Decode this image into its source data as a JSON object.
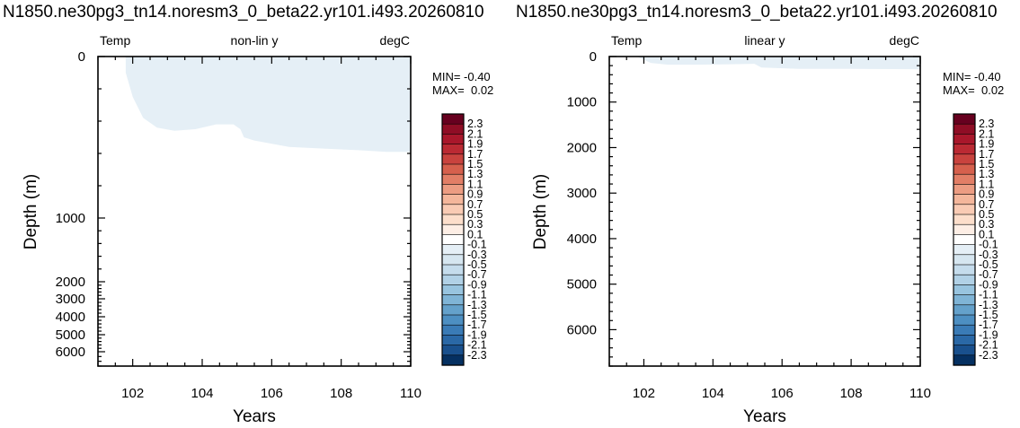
{
  "chart_data": [
    {
      "type": "heatmap",
      "title": "N1850.ne30pg3_tn14.noresm3_0_beta22.yr101.i493.20260810",
      "left_string": "Temp",
      "center_string": "non-lin y",
      "right_string": "degC",
      "xlabel": "Years",
      "ylabel": "Depth (m)",
      "xlim": [
        101,
        110
      ],
      "ylim": [
        6600,
        0
      ],
      "y_scale": "non-linear",
      "x_ticks": [
        102,
        104,
        106,
        108,
        110
      ],
      "y_ticks": [
        0,
        1000,
        2000,
        3000,
        4000,
        5000,
        6000
      ],
      "min_label": "MIN= -0.40",
      "max_label": "MAX=  0.02",
      "fill_color": "#e5eff6",
      "anomaly_region": {
        "value_range": [
          -0.1,
          0.1
        ],
        "start_year": 101.8,
        "boundary": [
          [
            101.8,
            0
          ],
          [
            101.8,
            100
          ],
          [
            102.0,
            250
          ],
          [
            102.3,
            380
          ],
          [
            102.7,
            440
          ],
          [
            103.2,
            460
          ],
          [
            103.8,
            450
          ],
          [
            104.4,
            420
          ],
          [
            104.9,
            420
          ],
          [
            105.1,
            450
          ],
          [
            105.2,
            500
          ],
          [
            105.5,
            520
          ],
          [
            106.5,
            560
          ],
          [
            107.5,
            570
          ],
          [
            108.5,
            580
          ],
          [
            109.3,
            590
          ],
          [
            110.0,
            590
          ]
        ]
      }
    },
    {
      "type": "heatmap",
      "title": "N1850.ne30pg3_tn14.noresm3_0_beta22.yr101.i493.20260810",
      "left_string": "Temp",
      "center_string": "linear y",
      "right_string": "degC",
      "xlabel": "Years",
      "ylabel": "Depth (m)",
      "xlim": [
        101,
        110
      ],
      "ylim": [
        6800,
        0
      ],
      "y_scale": "linear",
      "x_ticks": [
        102,
        104,
        106,
        108,
        110
      ],
      "y_ticks": [
        0,
        1000,
        2000,
        3000,
        4000,
        5000,
        6000
      ],
      "min_label": "MIN= -0.40",
      "max_label": "MAX=  0.02",
      "fill_color": "#e5eff6",
      "anomaly_region": {
        "value_range": [
          -0.1,
          0.1
        ],
        "start_year": 101.8,
        "boundary": [
          [
            101.8,
            0
          ],
          [
            102.2,
            140
          ],
          [
            102.7,
            180
          ],
          [
            103.5,
            180
          ],
          [
            104.5,
            170
          ],
          [
            105.2,
            160
          ],
          [
            105.4,
            240
          ],
          [
            106.5,
            270
          ],
          [
            108.0,
            270
          ],
          [
            110.0,
            280
          ]
        ]
      }
    }
  ],
  "colorbar": {
    "labels": [
      "2.3",
      "2.1",
      "1.9",
      "1.7",
      "1.5",
      "1.3",
      "1.1",
      "0.9",
      "0.7",
      "0.5",
      "0.3",
      "0.1",
      "-0.1",
      "-0.3",
      "-0.5",
      "-0.7",
      "-0.9",
      "-1.1",
      "-1.3",
      "-1.5",
      "-1.7",
      "-1.9",
      "-2.1",
      "-2.3"
    ],
    "colors": [
      "#67001f",
      "#8f0d25",
      "#a9172b",
      "#bb2a33",
      "#c9433e",
      "#d6604d",
      "#e27e66",
      "#ec9c82",
      "#f4b69b",
      "#f9cbb4",
      "#fcdecb",
      "#fdeee5",
      "#ffffff",
      "#e5eff6",
      "#d6e6f0",
      "#c5dcec",
      "#b1d1e6",
      "#98c4df",
      "#7fb4d6",
      "#64a1cb",
      "#4d8fc2",
      "#3a7bb6",
      "#2a68a6",
      "#19508d",
      "#053061"
    ]
  }
}
